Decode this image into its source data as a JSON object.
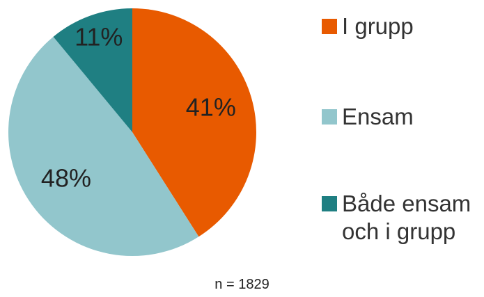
{
  "chart_data": {
    "type": "pie",
    "categories": [
      "I grupp",
      "Ensam",
      "Både ensam och i grupp"
    ],
    "values": [
      41,
      48,
      11
    ],
    "value_labels": [
      "41%",
      "48%",
      "11%"
    ],
    "colors": [
      "#e85a00",
      "#92c6cc",
      "#1f7f82"
    ],
    "legend": "right",
    "note": "n = 1829"
  }
}
